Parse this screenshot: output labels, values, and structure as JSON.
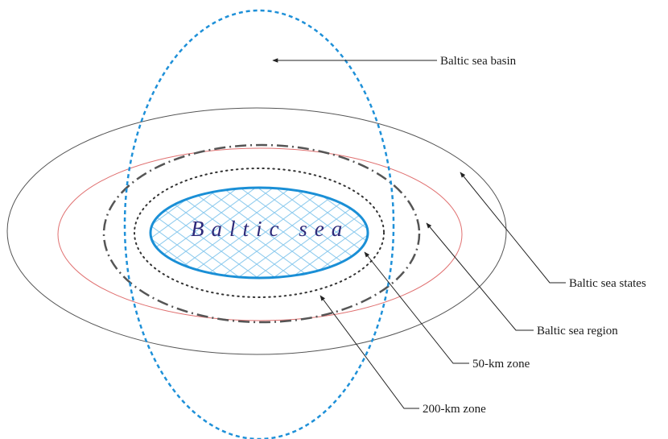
{
  "diagram": {
    "center_label": "Baltic sea",
    "labels": {
      "basin": "Baltic sea basin",
      "states": "Baltic sea states",
      "region": "Baltic sea region",
      "zone_50": "50-km zone",
      "zone_200": "200-km zone"
    },
    "colors": {
      "basin_outline": "#1e90d8",
      "states_outline": "#555555",
      "region_outline": "#e07070",
      "zone_200_outline": "#555555",
      "zone_50_outline": "#333333",
      "sea_outline": "#1a8fd6",
      "sea_hatch": "#8ecbee",
      "center_text": "#2e2a7a"
    }
  }
}
